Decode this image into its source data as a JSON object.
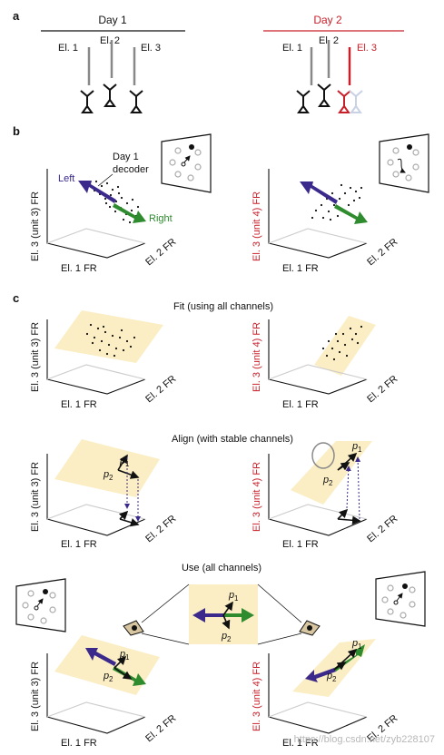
{
  "panels": {
    "a": "a",
    "b": "b",
    "c": "c"
  },
  "day1": {
    "title": "Day 1",
    "el1": "El. 1",
    "el2": "El. 2",
    "el3": "El. 3"
  },
  "day2": {
    "title": "Day 2",
    "el1": "El. 1",
    "el2": "El. 2",
    "el3": "El. 3"
  },
  "axes": {
    "x": "El. 1 FR",
    "z": "El. 2 FR",
    "y_left": "El. 3 (unit 3) FR",
    "y_right": "El. 3 (unit 4) FR"
  },
  "b": {
    "decoder": "Day 1 decoder",
    "left": "Left",
    "right": "Right"
  },
  "c": {
    "fit": "Fit (using all channels)",
    "align": "Align (with stable channels)",
    "use": "Use (all channels)",
    "p1": "p",
    "p1_sub": "1",
    "p2": "p",
    "p2_sub": "2"
  },
  "watermark": "https://blog.csdn.net/zyb228107",
  "colors": {
    "red": "#c8202a",
    "blue": "#3b2a8c",
    "green": "#2e8b2e",
    "plane": "#fbeec4"
  }
}
